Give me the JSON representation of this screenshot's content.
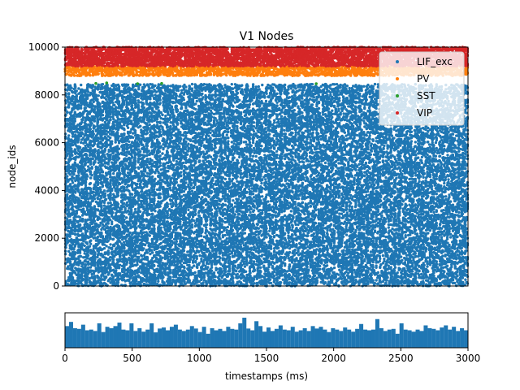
{
  "chart_data": [
    {
      "type": "scatter",
      "title": "V1 Nodes",
      "xlabel": "",
      "ylabel": "node_ids",
      "xlim": [
        0,
        3000
      ],
      "ylim": [
        0,
        10000
      ],
      "yticks": [
        0,
        2000,
        4000,
        6000,
        8000,
        10000
      ],
      "grid": false,
      "legend": "top-right",
      "series": [
        {
          "name": "LIF_exc",
          "color": "#1f77b4",
          "node_range": [
            0,
            8450
          ]
        },
        {
          "name": "PV",
          "color": "#ff7f0e",
          "node_range": [
            8800,
            9200
          ]
        },
        {
          "name": "SST",
          "color": "#2ca02c",
          "node_range": [
            8450,
            8500
          ],
          "points": [
            [
              230,
              8480
            ],
            [
              310,
              8500
            ],
            [
              540,
              8470
            ],
            [
              720,
              8480
            ],
            [
              1870,
              8470
            ]
          ]
        },
        {
          "name": "VIP",
          "color": "#d62728",
          "node_range": [
            9200,
            10000
          ]
        }
      ]
    },
    {
      "type": "bar",
      "title": "",
      "xlabel": "timestamps (ms)",
      "ylabel": "",
      "xlim": [
        0,
        3000
      ],
      "xticks": [
        0,
        500,
        1000,
        1500,
        2000,
        2500,
        3000
      ],
      "color": "#1f77b4",
      "bins": 100,
      "values": [
        0.62,
        0.74,
        0.56,
        0.54,
        0.66,
        0.5,
        0.52,
        0.48,
        0.7,
        0.45,
        0.6,
        0.56,
        0.62,
        0.72,
        0.52,
        0.5,
        0.7,
        0.48,
        0.56,
        0.46,
        0.52,
        0.7,
        0.44,
        0.55,
        0.58,
        0.5,
        0.6,
        0.66,
        0.52,
        0.48,
        0.52,
        0.62,
        0.55,
        0.45,
        0.6,
        0.4,
        0.56,
        0.5,
        0.54,
        0.48,
        0.6,
        0.54,
        0.52,
        0.7,
        0.86,
        0.55,
        0.5,
        0.76,
        0.62,
        0.46,
        0.58,
        0.48,
        0.54,
        0.64,
        0.52,
        0.5,
        0.6,
        0.46,
        0.5,
        0.56,
        0.48,
        0.62,
        0.55,
        0.6,
        0.52,
        0.45,
        0.56,
        0.52,
        0.48,
        0.58,
        0.52,
        0.46,
        0.54,
        0.68,
        0.52,
        0.5,
        0.52,
        0.82,
        0.56,
        0.48,
        0.52,
        0.54,
        0.4,
        0.7,
        0.52,
        0.5,
        0.46,
        0.52,
        0.48,
        0.64,
        0.56,
        0.54,
        0.5,
        0.58,
        0.64,
        0.52,
        0.6,
        0.48,
        0.56,
        0.5
      ]
    }
  ]
}
